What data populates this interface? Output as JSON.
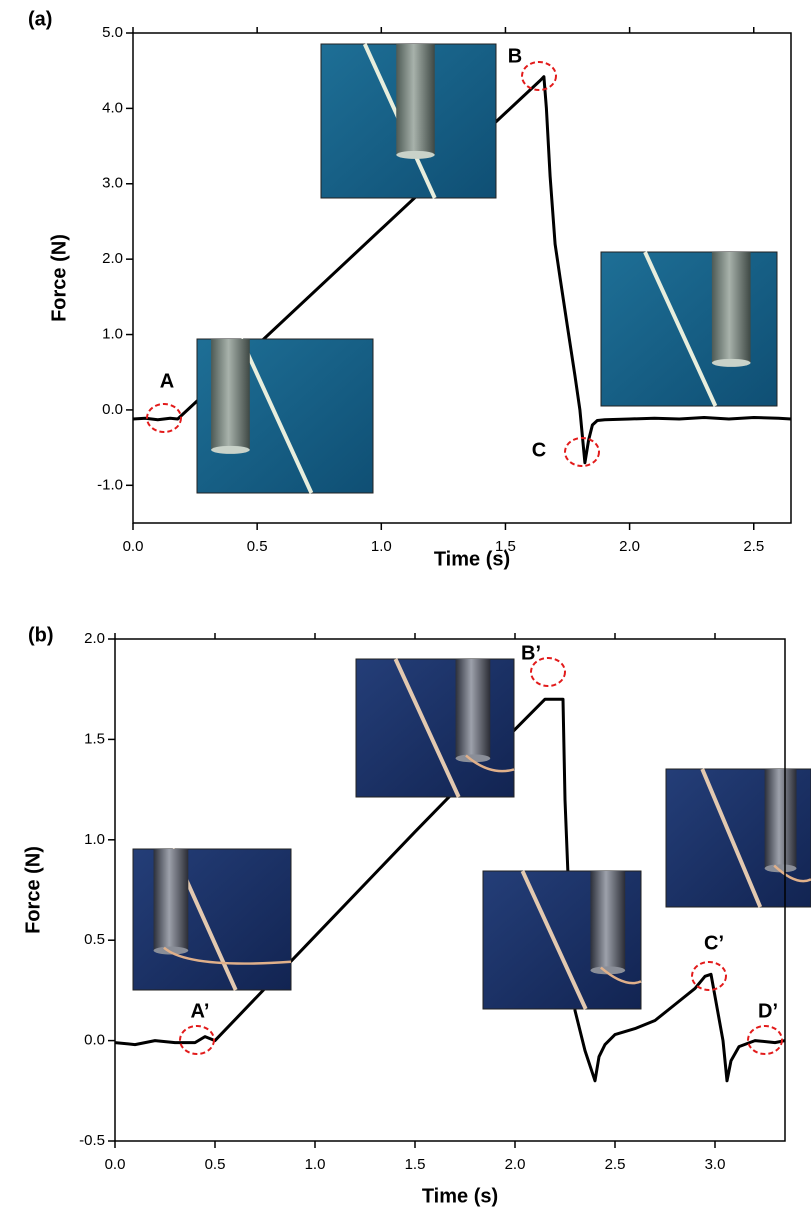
{
  "chart_data": [
    {
      "type": "line",
      "panel_label": "(a)",
      "xlabel": "Time (s)",
      "ylabel": "Force (N)",
      "color": "#000000",
      "x": [
        0,
        0.05,
        0.1,
        0.15,
        0.18,
        0.5,
        1.0,
        1.5,
        1.64,
        1.655,
        1.665,
        1.68,
        1.7,
        1.72,
        1.75,
        1.78,
        1.8,
        1.82,
        1.835,
        1.85,
        1.87,
        1.9,
        2.0,
        2.1,
        2.2,
        2.3,
        2.4,
        2.5,
        2.6,
        2.65
      ],
      "values": [
        -0.12,
        -0.11,
        -0.13,
        -0.11,
        -0.12,
        0.86,
        2.4,
        3.94,
        4.37,
        4.42,
        4.0,
        3.1,
        2.2,
        1.75,
        1.1,
        0.45,
        0.0,
        -0.7,
        -0.4,
        -0.2,
        -0.14,
        -0.13,
        -0.12,
        -0.11,
        -0.12,
        -0.1,
        -0.12,
        -0.1,
        -0.11,
        -0.12
      ],
      "xlim": [
        0,
        2.65
      ],
      "ylim": [
        -1.5,
        5.0
      ],
      "xticks": [
        {
          "value": 0,
          "label": "0.0"
        },
        {
          "value": 0.5,
          "label": "0.5"
        },
        {
          "value": 1,
          "label": "1.0"
        },
        {
          "value": 1.5,
          "label": "1.5"
        },
        {
          "value": 2,
          "label": "2.0"
        },
        {
          "value": 2.5,
          "label": "2.5"
        }
      ],
      "yticks": [
        {
          "value": -1,
          "label": "-1.0"
        },
        {
          "value": 0,
          "label": "0.0"
        },
        {
          "value": 1,
          "label": "1.0"
        },
        {
          "value": 2,
          "label": "2.0"
        },
        {
          "value": 3,
          "label": "3.0"
        },
        {
          "value": 4,
          "label": "4.0"
        },
        {
          "value": 5,
          "label": "5.0"
        }
      ],
      "annotations": [
        "A",
        "B",
        "C"
      ]
    },
    {
      "type": "line",
      "panel_label": "(b)",
      "xlabel": "Time (s)",
      "ylabel": "Force (N)",
      "color": "#000000",
      "x": [
        0,
        0.1,
        0.2,
        0.3,
        0.4,
        0.45,
        0.5,
        1.0,
        1.5,
        2.0,
        2.15,
        2.2,
        2.24,
        2.25,
        2.27,
        2.3,
        2.35,
        2.4,
        2.42,
        2.45,
        2.5,
        2.6,
        2.7,
        2.8,
        2.9,
        2.95,
        2.98,
        3.0,
        3.04,
        3.06,
        3.08,
        3.12,
        3.2,
        3.3,
        3.35
      ],
      "values": [
        -0.01,
        -0.02,
        0.0,
        -0.01,
        -0.01,
        0.02,
        0.0,
        0.52,
        1.04,
        1.55,
        1.7,
        1.7,
        1.7,
        1.2,
        0.7,
        0.15,
        -0.05,
        -0.2,
        -0.08,
        -0.02,
        0.03,
        0.06,
        0.1,
        0.18,
        0.26,
        0.32,
        0.33,
        0.22,
        0.0,
        -0.2,
        -0.1,
        -0.03,
        0.0,
        -0.01,
        0.0
      ],
      "xlim": [
        0,
        3.35
      ],
      "ylim": [
        -0.5,
        2.0
      ],
      "xticks": [
        {
          "value": 0,
          "label": "0.0"
        },
        {
          "value": 0.5,
          "label": "0.5"
        },
        {
          "value": 1,
          "label": "1.0"
        },
        {
          "value": 1.5,
          "label": "1.5"
        },
        {
          "value": 2,
          "label": "2.0"
        },
        {
          "value": 2.5,
          "label": "2.5"
        },
        {
          "value": 3,
          "label": "3.0"
        }
      ],
      "yticks": [
        {
          "value": -0.5,
          "label": "-0.5"
        },
        {
          "value": 0,
          "label": "0.0"
        },
        {
          "value": 0.5,
          "label": "0.5"
        },
        {
          "value": 1,
          "label": "1.0"
        },
        {
          "value": 1.5,
          "label": "1.5"
        },
        {
          "value": 2,
          "label": "2.0"
        }
      ],
      "annotations": [
        "A’",
        "B’",
        "C’",
        "D’"
      ]
    }
  ]
}
